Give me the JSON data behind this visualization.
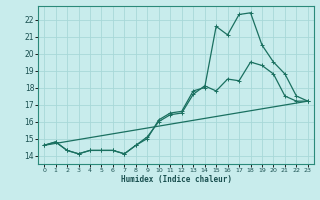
{
  "xlabel": "Humidex (Indice chaleur)",
  "bg_color": "#c8ecec",
  "grid_color": "#a8d8d8",
  "line_color": "#1a7060",
  "xlim": [
    -0.5,
    23.5
  ],
  "ylim": [
    13.5,
    22.8
  ],
  "xticks": [
    0,
    1,
    2,
    3,
    4,
    5,
    6,
    7,
    8,
    9,
    10,
    11,
    12,
    13,
    14,
    15,
    16,
    17,
    18,
    19,
    20,
    21,
    22,
    23
  ],
  "yticks": [
    14,
    15,
    16,
    17,
    18,
    19,
    20,
    21,
    22
  ],
  "line1_x": [
    0,
    1,
    2,
    3,
    4,
    5,
    6,
    7,
    8,
    9,
    10,
    11,
    12,
    13,
    14,
    15,
    16,
    17,
    18,
    19,
    20,
    21,
    22,
    23
  ],
  "line1_y": [
    14.6,
    14.8,
    14.3,
    14.1,
    14.3,
    14.3,
    14.3,
    14.1,
    14.6,
    15.0,
    16.1,
    16.5,
    16.6,
    17.8,
    18.0,
    21.6,
    21.1,
    22.3,
    22.4,
    20.5,
    19.5,
    18.8,
    17.5,
    17.2
  ],
  "line2_x": [
    0,
    1,
    2,
    3,
    4,
    5,
    6,
    7,
    8,
    9,
    10,
    11,
    12,
    13,
    14,
    15,
    16,
    17,
    18,
    19,
    20,
    21,
    22,
    23
  ],
  "line2_y": [
    14.6,
    14.8,
    14.3,
    14.1,
    14.3,
    14.3,
    14.3,
    14.1,
    14.6,
    15.1,
    16.0,
    16.4,
    16.5,
    17.6,
    18.1,
    17.8,
    18.5,
    18.4,
    19.5,
    19.3,
    18.8,
    17.5,
    17.2,
    17.2
  ],
  "line3_x": [
    0,
    23
  ],
  "line3_y": [
    14.6,
    17.2
  ]
}
